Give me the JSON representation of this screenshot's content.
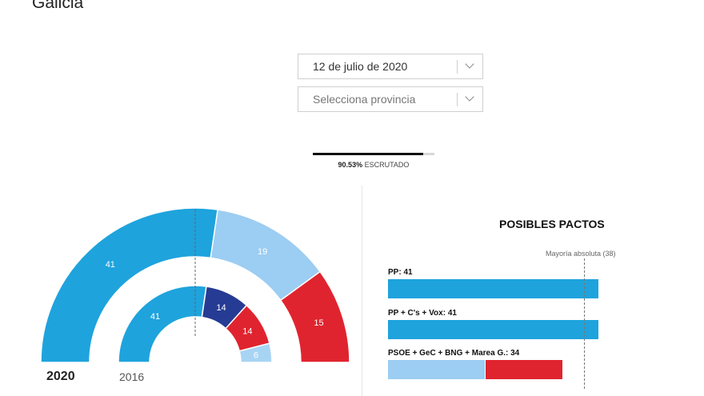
{
  "header": {
    "title": "Galicia"
  },
  "filters": {
    "date": {
      "value": "12 de julio de 2020"
    },
    "province": {
      "placeholder": "Selecciona provincia"
    }
  },
  "progress": {
    "percent": 90.53,
    "percent_label": "90.53%",
    "label": "ESCRUTADO"
  },
  "colors": {
    "pp": "#1ea3dd",
    "bng": "#9ccdf2",
    "psoe": "#e0242f",
    "gec": "#a8d4f4",
    "mg": "#263b93"
  },
  "chart_data": [
    {
      "type": "hemicycle",
      "label": "2020",
      "total": 75,
      "series": [
        {
          "name": "",
          "value": 41,
          "color": "#1ea3dd"
        },
        {
          "name": "",
          "value": 19,
          "color": "#9ccdf2"
        },
        {
          "name": "",
          "value": 15,
          "color": "#e0242f"
        }
      ]
    },
    {
      "type": "hemicycle",
      "label": "2016",
      "total": 75,
      "series": [
        {
          "name": "",
          "value": 41,
          "color": "#1ea3dd"
        },
        {
          "name": "",
          "value": 14,
          "color": "#263b93"
        },
        {
          "name": "",
          "value": 14,
          "color": "#e0242f"
        },
        {
          "name": "",
          "value": 6,
          "color": "#a8d4f4"
        }
      ]
    },
    {
      "type": "bar",
      "title": "POSIBLES PACTOS",
      "reference": {
        "label": "Mayoría absoluta (38)",
        "value": 38
      },
      "xlim": [
        0,
        41
      ],
      "pacts": [
        {
          "label": "PP: 41",
          "segments": [
            {
              "value": 41,
              "color": "#1ea3dd"
            }
          ]
        },
        {
          "label": "PP + C's + Vox: 41",
          "segments": [
            {
              "value": 41,
              "color": "#1ea3dd"
            }
          ]
        },
        {
          "label": "PSOE + GeC + BNG + Marea G.: 34",
          "segments": [
            {
              "value": 19,
              "color": "#9ccdf2"
            },
            {
              "value": 15,
              "color": "#e0242f"
            }
          ]
        }
      ]
    }
  ]
}
